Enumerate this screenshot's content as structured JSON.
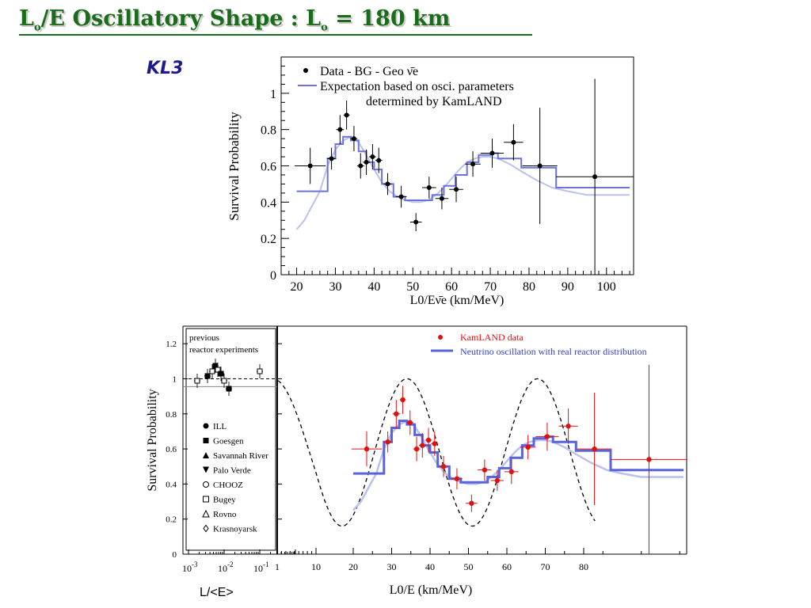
{
  "slide": {
    "title_pre": "L",
    "title_sub1": "o",
    "title_mid": "/E Oscillatory Shape : L",
    "title_sub2": "o",
    "title_post": " = 180 km",
    "kl3_label": "KL3",
    "extra_xlabel": "L/<E>"
  },
  "chart_data": [
    {
      "type": "line",
      "ylabel": "Survival Probability",
      "xlabel": "L0/Eν̄e (km/MeV)",
      "xlim": [
        16,
        107
      ],
      "ylim": [
        0,
        1.2
      ],
      "xticks": [
        20,
        30,
        40,
        50,
        60,
        70,
        80,
        90,
        100
      ],
      "yticks": [
        0,
        0.2,
        0.4,
        0.6,
        0.8,
        1
      ],
      "legend": {
        "position": "top",
        "data_label": "Data - BG - Geo ν̄e",
        "expectation_label_line1": "Expectation based on osci. parameters",
        "expectation_label_line2": "determined by KamLAND"
      },
      "colors": {
        "data": "#000000",
        "expectation": "#6b72d8",
        "smooth": "#b9c2ee"
      },
      "data_points": [
        {
          "x": 23.5,
          "y": 0.6,
          "xerr": 4.0,
          "yerr": 0.1
        },
        {
          "x": 29.0,
          "y": 0.64,
          "xerr": 1.2,
          "yerr": 0.06
        },
        {
          "x": 31.2,
          "y": 0.8,
          "xerr": 1.0,
          "yerr": 0.08
        },
        {
          "x": 32.9,
          "y": 0.88,
          "xerr": 0.8,
          "yerr": 0.08
        },
        {
          "x": 34.8,
          "y": 0.75,
          "xerr": 0.9,
          "yerr": 0.07
        },
        {
          "x": 36.5,
          "y": 0.6,
          "xerr": 0.9,
          "yerr": 0.07
        },
        {
          "x": 38.0,
          "y": 0.62,
          "xerr": 0.9,
          "yerr": 0.07
        },
        {
          "x": 39.6,
          "y": 0.65,
          "xerr": 0.9,
          "yerr": 0.07
        },
        {
          "x": 41.2,
          "y": 0.63,
          "xerr": 0.9,
          "yerr": 0.07
        },
        {
          "x": 43.5,
          "y": 0.5,
          "xerr": 1.0,
          "yerr": 0.06
        },
        {
          "x": 47.0,
          "y": 0.43,
          "xerr": 1.4,
          "yerr": 0.06
        },
        {
          "x": 50.8,
          "y": 0.29,
          "xerr": 1.5,
          "yerr": 0.05
        },
        {
          "x": 54.2,
          "y": 0.48,
          "xerr": 1.8,
          "yerr": 0.06
        },
        {
          "x": 57.5,
          "y": 0.42,
          "xerr": 1.7,
          "yerr": 0.06
        },
        {
          "x": 61.2,
          "y": 0.47,
          "xerr": 1.8,
          "yerr": 0.07
        },
        {
          "x": 65.5,
          "y": 0.61,
          "xerr": 2.0,
          "yerr": 0.07
        },
        {
          "x": 70.5,
          "y": 0.67,
          "xerr": 3.0,
          "yerr": 0.08
        },
        {
          "x": 76.0,
          "y": 0.73,
          "xerr": 2.5,
          "yerr": 0.1
        },
        {
          "x": 82.8,
          "y": 0.6,
          "xerr": 4.5,
          "yerr": 0.32
        },
        {
          "x": 97.0,
          "y": 0.54,
          "xerr": 10.0,
          "yerr": 0.54
        }
      ],
      "expectation_step": [
        [
          20,
          0.46
        ],
        [
          28,
          0.46
        ],
        [
          28,
          0.64
        ],
        [
          30,
          0.64
        ],
        [
          30,
          0.72
        ],
        [
          32,
          0.72
        ],
        [
          32,
          0.76
        ],
        [
          34,
          0.76
        ],
        [
          34,
          0.74
        ],
        [
          36,
          0.74
        ],
        [
          36,
          0.68
        ],
        [
          38,
          0.68
        ],
        [
          38,
          0.62
        ],
        [
          40,
          0.62
        ],
        [
          40,
          0.58
        ],
        [
          42,
          0.58
        ],
        [
          42,
          0.5
        ],
        [
          45,
          0.5
        ],
        [
          45,
          0.43
        ],
        [
          48,
          0.43
        ],
        [
          48,
          0.41
        ],
        [
          52,
          0.41
        ],
        [
          52,
          0.41
        ],
        [
          55,
          0.41
        ],
        [
          55,
          0.44
        ],
        [
          58,
          0.44
        ],
        [
          58,
          0.49
        ],
        [
          61,
          0.49
        ],
        [
          61,
          0.55
        ],
        [
          64,
          0.55
        ],
        [
          64,
          0.62
        ],
        [
          67,
          0.62
        ],
        [
          67,
          0.66
        ],
        [
          70,
          0.66
        ],
        [
          70,
          0.67
        ],
        [
          72,
          0.67
        ],
        [
          72,
          0.64
        ],
        [
          78,
          0.64
        ],
        [
          78,
          0.59
        ],
        [
          87,
          0.59
        ],
        [
          87,
          0.48
        ],
        [
          106,
          0.48
        ]
      ],
      "expectation_smooth": [
        [
          20,
          0.25
        ],
        [
          22,
          0.3
        ],
        [
          24,
          0.38
        ],
        [
          26,
          0.46
        ],
        [
          28,
          0.6
        ],
        [
          30,
          0.69
        ],
        [
          32,
          0.74
        ],
        [
          34,
          0.76
        ],
        [
          36,
          0.73
        ],
        [
          38,
          0.66
        ],
        [
          40,
          0.58
        ],
        [
          42,
          0.51
        ],
        [
          44,
          0.46
        ],
        [
          46,
          0.43
        ],
        [
          48,
          0.41
        ],
        [
          50,
          0.4
        ],
        [
          52,
          0.4
        ],
        [
          54,
          0.41
        ],
        [
          56,
          0.44
        ],
        [
          58,
          0.48
        ],
        [
          60,
          0.53
        ],
        [
          62,
          0.58
        ],
        [
          64,
          0.62
        ],
        [
          66,
          0.64
        ],
        [
          68,
          0.65
        ],
        [
          70,
          0.65
        ],
        [
          72,
          0.64
        ],
        [
          75,
          0.61
        ],
        [
          78,
          0.57
        ],
        [
          82,
          0.52
        ],
        [
          86,
          0.48
        ],
        [
          90,
          0.46
        ],
        [
          95,
          0.44
        ],
        [
          100,
          0.44
        ],
        [
          106,
          0.44
        ]
      ]
    },
    {
      "type": "line",
      "ylabel": "Survival Probability",
      "xlabel": "L0/E (km/MeV)",
      "ylim": [
        0,
        1.3
      ],
      "yticks": [
        "0",
        "0.2",
        "0.4",
        "0.6",
        "0.8",
        "1",
        "1.2"
      ],
      "left_xticks_label_powers": [
        "-3",
        "-2",
        "-1"
      ],
      "left_xtick_base": "10",
      "right_xticks": [
        "1",
        "10",
        "20",
        "30",
        "40",
        "50",
        "60",
        "70",
        "80"
      ],
      "legend": {
        "position": "top-right",
        "data_label": "KamLAND data",
        "oscillation_label": "Neutrino oscillation with real reactor distribution"
      },
      "colors": {
        "data": "#e01010",
        "oscillation": "#5a62dc",
        "smooth": "#b9c2ee",
        "dashed": "#000000"
      },
      "previous_experiments_title_line1": "previous",
      "previous_experiments_title_line2": "reactor experiments",
      "previous_experiments": [
        {
          "name": "ILL",
          "marker": "filled-circle"
        },
        {
          "name": "Goesgen",
          "marker": "filled-square"
        },
        {
          "name": "Savannah River",
          "marker": "filled-triangle-up"
        },
        {
          "name": "Palo Verde",
          "marker": "filled-triangle-down"
        },
        {
          "name": "CHOOZ",
          "marker": "open-circle"
        },
        {
          "name": "Bugey",
          "marker": "open-square"
        },
        {
          "name": "Rovno",
          "marker": "open-triangle-up"
        },
        {
          "name": "Krasnoyarsk",
          "marker": "open-diamond"
        }
      ],
      "data_points": [
        {
          "x": 23.5,
          "y": 0.6,
          "xerr": 4.0,
          "yerr": 0.1
        },
        {
          "x": 29.0,
          "y": 0.64,
          "xerr": 1.2,
          "yerr": 0.06
        },
        {
          "x": 31.2,
          "y": 0.8,
          "xerr": 1.0,
          "yerr": 0.08
        },
        {
          "x": 32.9,
          "y": 0.88,
          "xerr": 0.8,
          "yerr": 0.08
        },
        {
          "x": 34.8,
          "y": 0.75,
          "xerr": 0.9,
          "yerr": 0.07
        },
        {
          "x": 36.5,
          "y": 0.6,
          "xerr": 0.9,
          "yerr": 0.07
        },
        {
          "x": 38.0,
          "y": 0.62,
          "xerr": 0.9,
          "yerr": 0.07
        },
        {
          "x": 39.6,
          "y": 0.65,
          "xerr": 0.9,
          "yerr": 0.07
        },
        {
          "x": 41.2,
          "y": 0.63,
          "xerr": 0.9,
          "yerr": 0.07
        },
        {
          "x": 43.5,
          "y": 0.5,
          "xerr": 1.0,
          "yerr": 0.06
        },
        {
          "x": 47.0,
          "y": 0.43,
          "xerr": 1.4,
          "yerr": 0.06
        },
        {
          "x": 50.8,
          "y": 0.29,
          "xerr": 1.5,
          "yerr": 0.05
        },
        {
          "x": 54.2,
          "y": 0.48,
          "xerr": 1.8,
          "yerr": 0.06
        },
        {
          "x": 57.5,
          "y": 0.42,
          "xerr": 1.7,
          "yerr": 0.06
        },
        {
          "x": 61.2,
          "y": 0.47,
          "xerr": 1.8,
          "yerr": 0.07
        },
        {
          "x": 65.5,
          "y": 0.61,
          "xerr": 2.0,
          "yerr": 0.07
        },
        {
          "x": 70.5,
          "y": 0.67,
          "xerr": 3.0,
          "yerr": 0.08
        },
        {
          "x": 76.0,
          "y": 0.73,
          "xerr": 2.5,
          "yerr": 0.1
        },
        {
          "x": 82.8,
          "y": 0.6,
          "xerr": 4.5,
          "yerr": 0.32
        },
        {
          "x": 97.0,
          "y": 0.54,
          "xerr": 10.0,
          "yerr": 0.54
        }
      ]
    }
  ]
}
